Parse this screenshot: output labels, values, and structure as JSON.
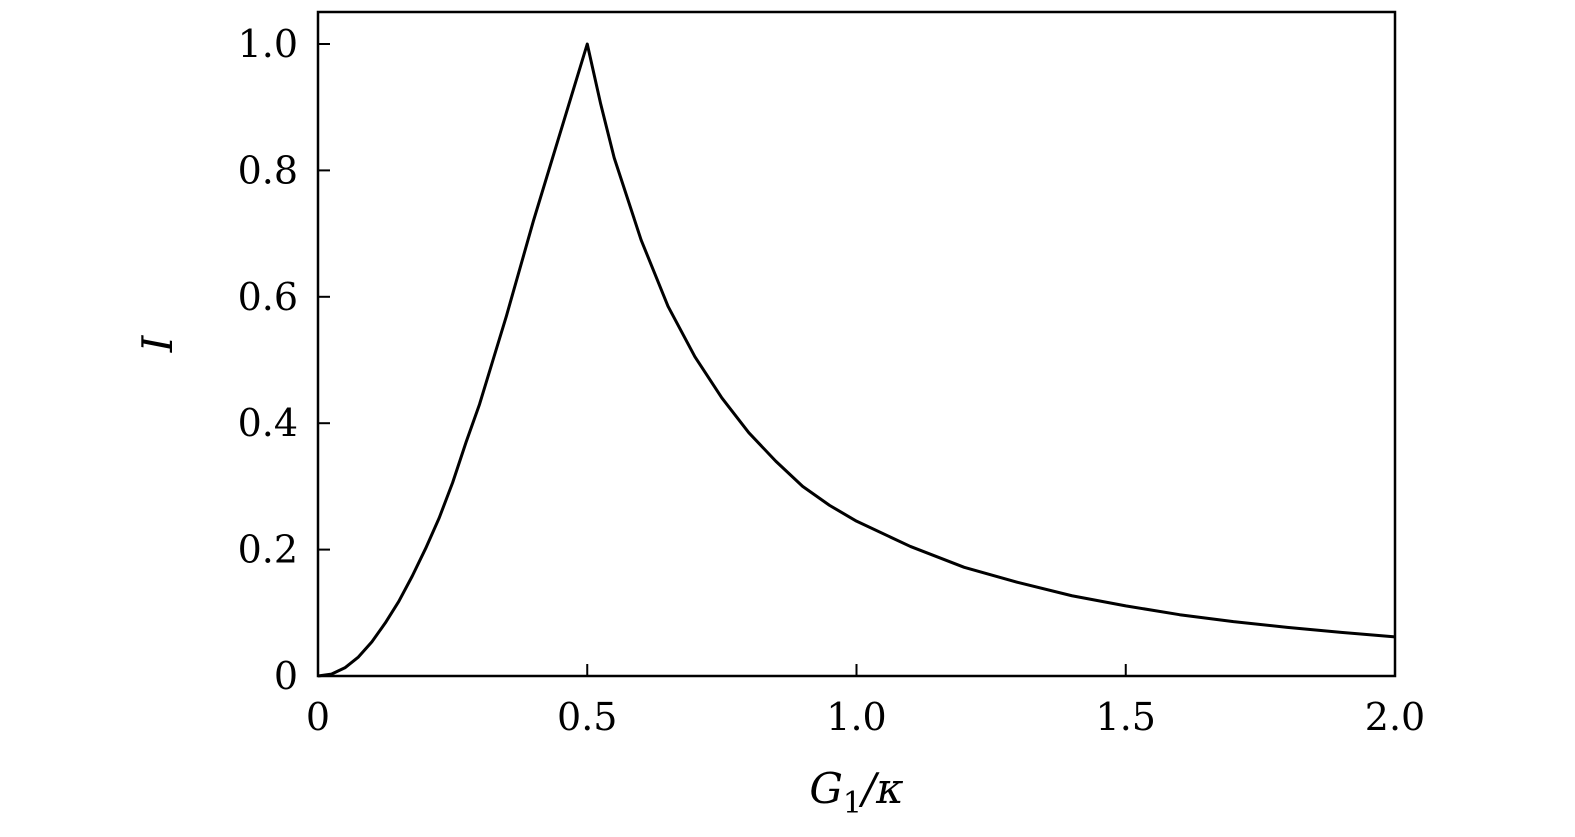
{
  "chart_data": {
    "type": "line",
    "title": "",
    "xlabel": "G1/κ",
    "xlabel_parts": {
      "main": "G",
      "sub": "1",
      "rest": "/κ"
    },
    "ylabel": "I",
    "xlim": [
      0,
      2.0
    ],
    "ylim": [
      0,
      1.05
    ],
    "xticks": [
      0,
      0.5,
      1.0,
      1.5,
      2.0
    ],
    "xtick_labels": [
      "0",
      "0.5",
      "1.0",
      "1.5",
      "2.0"
    ],
    "yticks": [
      0,
      0.2,
      0.4,
      0.6,
      0.8,
      1.0
    ],
    "ytick_labels": [
      "0",
      "0.2",
      "0.4",
      "0.6",
      "0.8",
      "1.0"
    ],
    "grid": false,
    "legend": "none",
    "line_color": "#000000",
    "series": [
      {
        "x": [
          0,
          0.025,
          0.05,
          0.075,
          0.1,
          0.125,
          0.15,
          0.175,
          0.2,
          0.225,
          0.25,
          0.275,
          0.3,
          0.325,
          0.35,
          0.375,
          0.4,
          0.425,
          0.45,
          0.475,
          0.5,
          0.525,
          0.55,
          0.6,
          0.65,
          0.7,
          0.75,
          0.8,
          0.85,
          0.9,
          0.95,
          1.0,
          1.1,
          1.2,
          1.3,
          1.4,
          1.5,
          1.6,
          1.7,
          1.8,
          1.9,
          2.0
        ],
        "y": [
          0,
          0.003,
          0.013,
          0.03,
          0.054,
          0.084,
          0.118,
          0.158,
          0.202,
          0.25,
          0.306,
          0.37,
          0.43,
          0.5,
          0.57,
          0.645,
          0.72,
          0.79,
          0.86,
          0.93,
          1.0,
          0.905,
          0.82,
          0.69,
          0.585,
          0.505,
          0.44,
          0.385,
          0.34,
          0.3,
          0.27,
          0.245,
          0.205,
          0.172,
          0.148,
          0.127,
          0.111,
          0.097,
          0.086,
          0.077,
          0.069,
          0.062
        ]
      }
    ]
  }
}
